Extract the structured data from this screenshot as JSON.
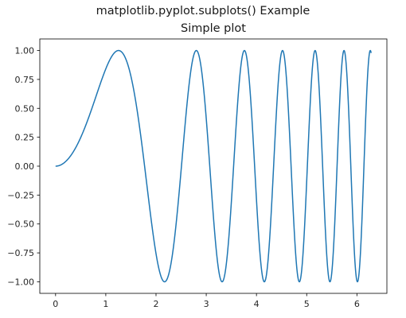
{
  "figure": {
    "suptitle": "matplotlib.pyplot.subplots() Example"
  },
  "chart_data": {
    "type": "line",
    "title": "Simple plot",
    "xlabel": "",
    "ylabel": "",
    "function": "sin(x^2)",
    "x_range": [
      0,
      6.2832
    ],
    "xlim": [
      -0.314,
      6.597
    ],
    "ylim": [
      -1.1,
      1.1
    ],
    "xticks": [
      0,
      1,
      2,
      3,
      4,
      5,
      6
    ],
    "xtick_labels": [
      "0",
      "1",
      "2",
      "3",
      "4",
      "5",
      "6"
    ],
    "yticks": [
      1.0,
      0.75,
      0.5,
      0.25,
      0.0,
      -0.25,
      -0.5,
      -0.75,
      -1.0
    ],
    "ytick_labels": [
      "1.00",
      "0.75",
      "0.50",
      "0.25",
      "0.00",
      "−0.25",
      "−0.50",
      "−0.75",
      "−1.00"
    ],
    "grid": false,
    "legend": "none",
    "series": [
      {
        "color": "#1f77b4"
      }
    ]
  }
}
